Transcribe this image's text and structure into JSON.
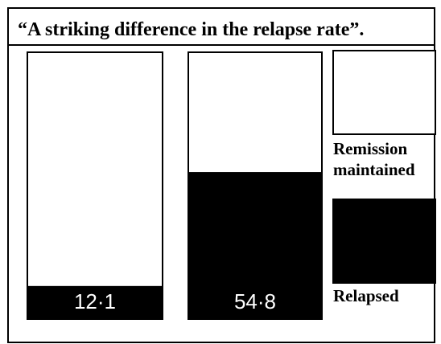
{
  "chart_data": {
    "type": "stacked_bar",
    "title": "“A striking difference in the relapse rate”.",
    "categories": [
      null,
      null
    ],
    "series": [
      {
        "name": "Relapsed",
        "color": "#000000",
        "values": [
          12.1,
          54.8
        ],
        "value_labels": [
          "12·1",
          "54·8"
        ]
      },
      {
        "name": "Remission maintained",
        "color": "#ffffff",
        "values": [
          87.9,
          45.2
        ]
      }
    ],
    "ylim": [
      0,
      100
    ],
    "legend": "right"
  }
}
